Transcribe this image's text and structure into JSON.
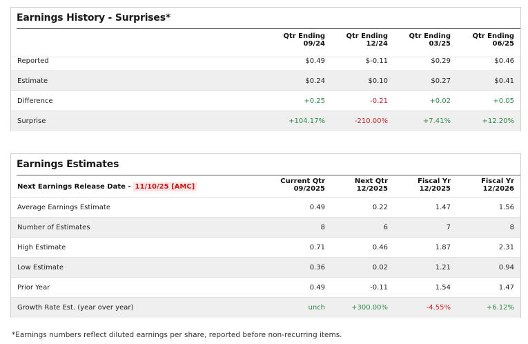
{
  "history": {
    "title": "Earnings History - Surprises*",
    "columns": [
      {
        "line1": "Qtr Ending",
        "line2": "09/24"
      },
      {
        "line1": "Qtr Ending",
        "line2": "12/24"
      },
      {
        "line1": "Qtr Ending",
        "line2": "03/25"
      },
      {
        "line1": "Qtr Ending",
        "line2": "06/25"
      }
    ],
    "rows": [
      {
        "label": "Reported",
        "values": [
          "$0.49",
          "$-0.11",
          "$0.29",
          "$0.46"
        ]
      },
      {
        "label": "Estimate",
        "values": [
          "$0.24",
          "$0.10",
          "$0.27",
          "$0.41"
        ]
      },
      {
        "label": "Difference",
        "values": [
          "+0.25",
          "-0.21",
          "+0.02",
          "+0.05"
        ]
      },
      {
        "label": "Surprise",
        "values": [
          "+104.17%",
          "-210.00%",
          "+7.41%",
          "+12.20%"
        ]
      }
    ]
  },
  "estimates": {
    "title": "Earnings Estimates",
    "release_label": "Next Earnings Release Date -",
    "release_date": "11/10/25 [AMC]",
    "columns": [
      {
        "line1": "Current Qtr",
        "line2": "09/2025"
      },
      {
        "line1": "Next Qtr",
        "line2": "12/2025"
      },
      {
        "line1": "Fiscal Yr",
        "line2": "12/2025"
      },
      {
        "line1": "Fiscal Yr",
        "line2": "12/2026"
      }
    ],
    "rows": [
      {
        "label": "Average Earnings Estimate",
        "values": [
          "0.49",
          "0.22",
          "1.47",
          "1.56"
        ]
      },
      {
        "label": "Number of Estimates",
        "values": [
          "8",
          "6",
          "7",
          "8"
        ]
      },
      {
        "label": "High Estimate",
        "values": [
          "0.71",
          "0.46",
          "1.87",
          "2.31"
        ]
      },
      {
        "label": "Low Estimate",
        "values": [
          "0.36",
          "0.02",
          "1.21",
          "0.94"
        ]
      },
      {
        "label": "Prior Year",
        "values": [
          "0.49",
          "-0.11",
          "1.54",
          "1.47"
        ]
      },
      {
        "label": "Growth Rate Est. (year over year)",
        "values": [
          "unch",
          "+300.00%",
          "-4.55%",
          "+6.12%"
        ]
      }
    ]
  },
  "colors": {
    "positive": "#2e8b44",
    "negative": "#cc1f1f",
    "row_alt": "#efefef",
    "release_bg": "#fde4e4"
  },
  "footnote": "*Earnings numbers reflect diluted earnings per share, reported before non-recurring items."
}
